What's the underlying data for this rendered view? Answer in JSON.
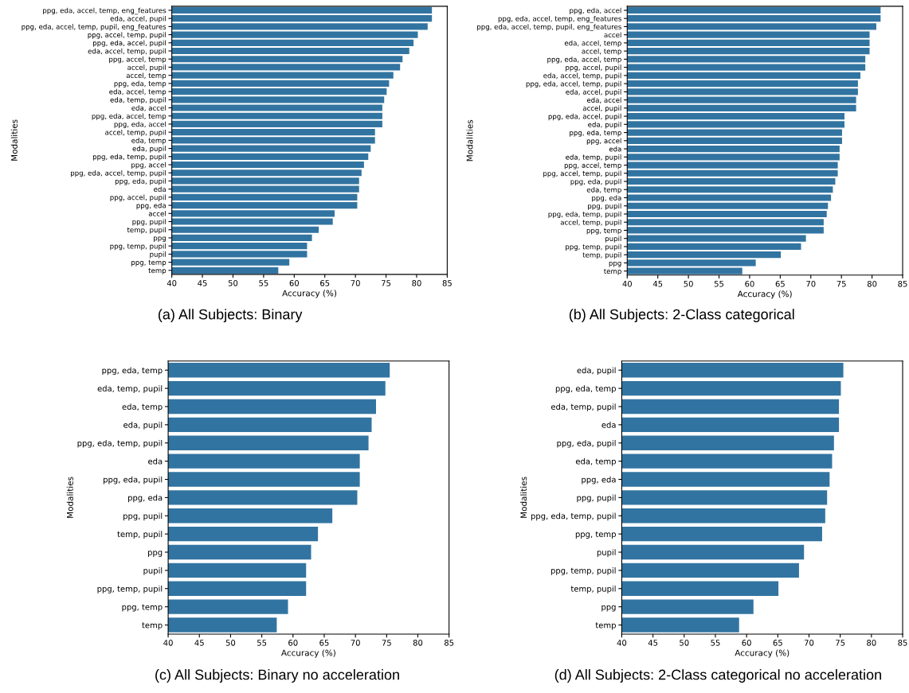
{
  "chart_data": [
    {
      "type": "bar",
      "orientation": "horizontal",
      "title": "(a) All Subjects: Binary",
      "xlabel": "Accuracy (%)",
      "ylabel": "Modalities",
      "color": "#3274a1",
      "xlim": [
        40,
        85
      ],
      "xticks": [
        40,
        45,
        50,
        55,
        60,
        65,
        70,
        75,
        80,
        85
      ],
      "grid": false,
      "legend": false,
      "categories": [
        "ppg, eda, accel, temp, eng_features",
        "eda, accel, pupil",
        "ppg, eda, accel, temp, pupil, eng_features",
        "ppg, accel, temp, pupil",
        "ppg, eda, accel, pupil",
        "eda, accel, temp, pupil",
        "ppg, accel, temp",
        "accel, pupil",
        "accel, temp",
        "ppg, eda, temp",
        "eda, accel, temp",
        "eda, temp, pupil",
        "eda, accel",
        "ppg, eda, accel, temp",
        "ppg, eda, accel",
        "accel, temp, pupil",
        "eda, temp",
        "eda, pupil",
        "ppg, eda, temp, pupil",
        "ppg, accel",
        "ppg, eda, accel, temp, pupil",
        "ppg, eda, pupil",
        "eda",
        "ppg, accel, pupil",
        "ppg, eda",
        "accel",
        "ppg, pupil",
        "temp, pupil",
        "ppg",
        "ppg, temp, pupil",
        "pupil",
        "ppg, temp",
        "temp"
      ],
      "values": [
        82.5,
        82.5,
        81.8,
        80.2,
        79.5,
        78.8,
        77.7,
        77.3,
        76.2,
        75.5,
        75.1,
        74.7,
        74.4,
        74.4,
        74.4,
        73.2,
        73.2,
        72.5,
        72.1,
        71.4,
        71.0,
        70.6,
        70.6,
        70.3,
        70.3,
        66.6,
        66.3,
        64.0,
        62.9,
        62.1,
        62.1,
        59.2,
        57.4
      ]
    },
    {
      "type": "bar",
      "orientation": "horizontal",
      "title": "(b) All Subjects: 2-Class categorical",
      "xlabel": "Accuracy (%)",
      "ylabel": "Modalities",
      "color": "#3274a1",
      "xlim": [
        40,
        85
      ],
      "xticks": [
        40,
        45,
        50,
        55,
        60,
        65,
        70,
        75,
        80,
        85
      ],
      "grid": false,
      "legend": false,
      "categories": [
        "ppg, eda, accel",
        "ppg, eda, accel, temp, eng_features",
        "ppg, eda, accel, temp, pupil, eng_features",
        "accel",
        "eda, accel, temp",
        "accel, temp",
        "ppg, eda, accel, temp",
        "ppg, accel, pupil",
        "eda, accel, temp, pupil",
        "ppg, eda, accel, temp, pupil",
        "eda, accel, pupil",
        "eda, accel",
        "accel, pupil",
        "ppg, eda, accel, pupil",
        "eda, pupil",
        "ppg, eda, temp",
        "ppg, accel",
        "eda",
        "eda, temp, pupil",
        "ppg, accel, temp",
        "ppg, accel, temp, pupil",
        "ppg, eda, pupil",
        "eda, temp",
        "ppg, eda",
        "ppg, pupil",
        "ppg, eda, temp, pupil",
        "accel, temp, pupil",
        "ppg, temp",
        "pupil",
        "ppg, temp, pupil",
        "temp, pupil",
        "ppg",
        "temp"
      ],
      "values": [
        81.4,
        81.4,
        80.7,
        79.6,
        79.6,
        79.6,
        78.9,
        78.9,
        78.1,
        77.7,
        77.7,
        77.4,
        77.4,
        75.5,
        75.5,
        75.1,
        75.1,
        74.7,
        74.7,
        74.4,
        74.4,
        74.0,
        73.6,
        73.3,
        72.8,
        72.6,
        72.1,
        72.1,
        69.2,
        68.4,
        65.1,
        61.0,
        58.8
      ]
    },
    {
      "type": "bar",
      "orientation": "horizontal",
      "title": "(c) All Subjects: Binary no acceleration",
      "xlabel": "Accuracy (%)",
      "ylabel": "Modalities",
      "color": "#3274a1",
      "xlim": [
        40,
        85
      ],
      "xticks": [
        40,
        45,
        50,
        55,
        60,
        65,
        70,
        75,
        80,
        85
      ],
      "grid": false,
      "legend": false,
      "categories": [
        "ppg, eda, temp",
        "eda, temp, pupil",
        "eda, temp",
        "eda, pupil",
        "ppg, eda, temp, pupil",
        "eda",
        "ppg, eda, pupil",
        "ppg, eda",
        "ppg, pupil",
        "temp, pupil",
        "ppg",
        "pupil",
        "ppg, temp, pupil",
        "ppg, temp",
        "temp"
      ],
      "values": [
        75.5,
        74.8,
        73.3,
        72.6,
        72.1,
        70.7,
        70.7,
        70.3,
        66.3,
        64.0,
        62.9,
        62.1,
        62.1,
        59.2,
        57.4
      ]
    },
    {
      "type": "bar",
      "orientation": "horizontal",
      "title": "(d) All Subjects: 2-Class categorical no acceleration",
      "xlabel": "Accuracy (%)",
      "ylabel": "Modalities",
      "color": "#3274a1",
      "xlim": [
        40,
        85
      ],
      "xticks": [
        40,
        45,
        50,
        55,
        60,
        65,
        70,
        75,
        80,
        85
      ],
      "grid": false,
      "legend": false,
      "categories": [
        "eda, pupil",
        "ppg, eda, temp",
        "eda, temp, pupil",
        "eda",
        "ppg, eda, pupil",
        "eda, temp",
        "ppg, eda",
        "ppg, pupil",
        "ppg, eda, temp, pupil",
        "ppg, temp",
        "pupil",
        "ppg, temp, pupil",
        "temp, pupil",
        "ppg",
        "temp"
      ],
      "values": [
        75.5,
        75.1,
        74.8,
        74.8,
        74.0,
        73.7,
        73.3,
        72.9,
        72.6,
        72.1,
        69.2,
        68.4,
        65.1,
        61.1,
        58.8
      ]
    }
  ]
}
